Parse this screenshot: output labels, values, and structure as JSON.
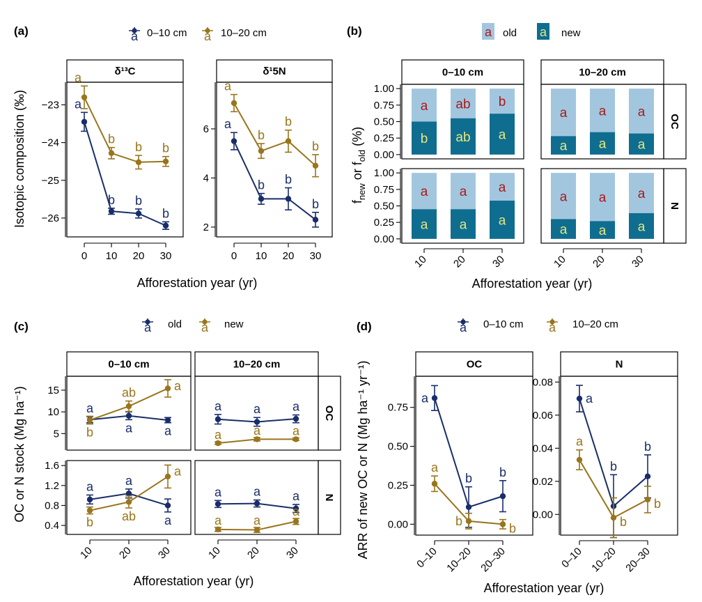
{
  "colors": {
    "blue": "#192d6a",
    "gold": "#99751b",
    "old": "#a3c6df",
    "new": "#0f6d90",
    "letter_old": "#a81a1a",
    "letter_new": "#e6e87a"
  },
  "chart_data": [
    {
      "id": "a",
      "type": "line",
      "label": "(a)",
      "legend": [
        "0–10 cm",
        "10–20 cm"
      ],
      "xlabel": "Afforestation year (yr)",
      "ylabel": "Isotopic composition (‰)",
      "x": [
        "0",
        "10",
        "20",
        "30"
      ],
      "panels": [
        {
          "title": "δ¹³C",
          "ylim": [
            -26.5,
            -22.4
          ],
          "yticks": [
            "-23",
            "-24",
            "-25",
            "-26"
          ],
          "series": [
            {
              "name": "0–10 cm",
              "values": [
                -23.45,
                -25.82,
                -25.88,
                -26.2
              ],
              "err": [
                0.25,
                0.08,
                0.12,
                0.1
              ],
              "letters": [
                "a",
                "b",
                "b",
                "b"
              ]
            },
            {
              "name": "10–20 cm",
              "values": [
                -22.8,
                -24.28,
                -24.52,
                -24.5
              ],
              "err": [
                0.3,
                0.15,
                0.18,
                0.13
              ],
              "letters": [
                "a",
                "b",
                "b",
                "b"
              ]
            }
          ]
        },
        {
          "title": "δ¹5N",
          "ylim": [
            1.6,
            7.9
          ],
          "yticks": [
            "2",
            "4",
            "6"
          ],
          "series": [
            {
              "name": "0–10 cm",
              "values": [
                5.5,
                3.15,
                3.15,
                2.3
              ],
              "err": [
                0.35,
                0.22,
                0.45,
                0.3
              ],
              "letters": [
                "a",
                "b",
                "b",
                "b"
              ]
            },
            {
              "name": "10–20 cm",
              "values": [
                7.05,
                5.1,
                5.5,
                4.5
              ],
              "err": [
                0.35,
                0.3,
                0.45,
                0.45
              ],
              "letters": [
                "a",
                "b",
                "b",
                "b"
              ]
            }
          ]
        }
      ]
    },
    {
      "id": "b",
      "type": "bar",
      "label": "(b)",
      "legend": [
        "old",
        "new"
      ],
      "legend_glyph": "a",
      "xlabel": "Afforestation year (yr)",
      "ylabel_main": "f",
      "ylabel_sub1": "new",
      "ylabel_mid": " or f",
      "ylabel_sub2": "old",
      "ylabel_tail": " (%)",
      "categories": [
        "10",
        "20",
        "30"
      ],
      "yticks": [
        "0.00",
        "0.25",
        "0.50",
        "0.75",
        "1.00"
      ],
      "columns": [
        "0–10 cm",
        "10–20 cm"
      ],
      "rows": [
        "OC",
        "N"
      ],
      "panels": [
        {
          "col": 0,
          "row": 0,
          "new": [
            0.5,
            0.55,
            0.62
          ],
          "old_letters": [
            "a",
            "ab",
            "b"
          ],
          "new_letters": [
            "b",
            "ab",
            "a"
          ]
        },
        {
          "col": 1,
          "row": 0,
          "new": [
            0.28,
            0.34,
            0.32
          ],
          "old_letters": [
            "a",
            "a",
            "a"
          ],
          "new_letters": [
            "a",
            "a",
            "a"
          ]
        },
        {
          "col": 0,
          "row": 1,
          "new": [
            0.45,
            0.45,
            0.58
          ],
          "old_letters": [
            "a",
            "a",
            "a"
          ],
          "new_letters": [
            "a",
            "a",
            "a"
          ]
        },
        {
          "col": 1,
          "row": 1,
          "new": [
            0.3,
            0.27,
            0.39
          ],
          "old_letters": [
            "a",
            "a",
            "a"
          ],
          "new_letters": [
            "a",
            "a",
            "a"
          ]
        }
      ]
    },
    {
      "id": "c",
      "type": "line",
      "label": "(c)",
      "legend": [
        "old",
        "new"
      ],
      "xlabel": "Afforestation year (yr)",
      "ylabel": "OC or N stock (Mg ha⁻¹)",
      "x": [
        "10",
        "20",
        "30"
      ],
      "columns": [
        "0–10 cm",
        "10–20 cm"
      ],
      "rows": [
        {
          "name": "OC",
          "ylim": [
            1.2,
            18.2
          ],
          "yticks": [
            "5",
            "10",
            "15"
          ]
        },
        {
          "name": "N",
          "ylim": [
            0.22,
            1.7
          ],
          "yticks": [
            "0.4",
            "0.8",
            "1.2",
            "1.6"
          ]
        }
      ],
      "panels": [
        {
          "col": 0,
          "row": 0,
          "old": {
            "values": [
              8.2,
              9.1,
              8.1
            ],
            "err": [
              0.7,
              0.9,
              0.6
            ],
            "letters": [
              "a",
              "a",
              "a"
            ]
          },
          "new": {
            "values": [
              8.1,
              11.3,
              15.4
            ],
            "err": [
              0.9,
              1.2,
              2.0
            ],
            "letters": [
              "b",
              "ab",
              "a"
            ]
          }
        },
        {
          "col": 1,
          "row": 0,
          "old": {
            "values": [
              8.3,
              7.7,
              8.4
            ],
            "err": [
              1.1,
              1.0,
              0.9
            ],
            "letters": [
              "a",
              "a",
              "a"
            ]
          },
          "new": {
            "values": [
              2.8,
              3.7,
              3.7
            ],
            "err": [
              0.3,
              0.4,
              0.3
            ],
            "letters": [
              "a",
              "a",
              "a"
            ]
          }
        },
        {
          "col": 0,
          "row": 1,
          "old": {
            "values": [
              0.92,
              1.04,
              0.8
            ],
            "err": [
              0.09,
              0.09,
              0.13
            ],
            "letters": [
              "a",
              "a",
              "a"
            ]
          },
          "new": {
            "values": [
              0.7,
              0.87,
              1.38
            ],
            "err": [
              0.07,
              0.12,
              0.23
            ],
            "letters": [
              "b",
              "ab",
              "a"
            ]
          }
        },
        {
          "col": 1,
          "row": 1,
          "old": {
            "values": [
              0.83,
              0.84,
              0.74
            ],
            "err": [
              0.07,
              0.07,
              0.08
            ],
            "letters": [
              "a",
              "a",
              "a"
            ]
          },
          "new": {
            "values": [
              0.32,
              0.31,
              0.48
            ],
            "err": [
              0.04,
              0.05,
              0.06
            ],
            "letters": [
              "a",
              "a",
              "a"
            ]
          }
        }
      ]
    },
    {
      "id": "d",
      "type": "line",
      "label": "(d)",
      "legend": [
        "0–10 cm",
        "10–20 cm"
      ],
      "xlabel": "Afforestation year (yr)",
      "ylabel": "ARR of new OC or N (Mg ha⁻¹ yr⁻¹)",
      "x": [
        "0–10",
        "10–20",
        "20–30"
      ],
      "panels": [
        {
          "title": "OC",
          "ylim": [
            -0.07,
            0.95
          ],
          "yticks": [
            "0.00",
            "0.25",
            "0.50",
            "0.75"
          ],
          "series": [
            {
              "name": "0–10 cm",
              "values": [
                0.81,
                0.11,
                0.18
              ],
              "err": [
                0.08,
                0.13,
                0.1
              ],
              "letters": [
                "a",
                "b",
                "b"
              ]
            },
            {
              "name": "10–20 cm",
              "values": [
                0.26,
                0.02,
                0.0
              ],
              "err": [
                0.05,
                0.05,
                0.03
              ],
              "letters": [
                "a",
                "b",
                "b"
              ]
            }
          ]
        },
        {
          "title": "N",
          "ylim": [
            -0.0125,
            0.0835
          ],
          "yticks": [
            "0.00",
            "0.02",
            "0.04",
            "0.06",
            "0.08"
          ],
          "series": [
            {
              "name": "0–10 cm",
              "values": [
                0.07,
                0.005,
                0.023
              ],
              "err": [
                0.008,
                0.019,
                0.013
              ],
              "letters": [
                "a",
                "b",
                "b"
              ]
            },
            {
              "name": "10–20 cm",
              "values": [
                0.033,
                -0.002,
                0.009
              ],
              "err": [
                0.006,
                0.012,
                0.008
              ],
              "letters": [
                "a",
                "b",
                "b"
              ]
            }
          ]
        }
      ]
    }
  ]
}
